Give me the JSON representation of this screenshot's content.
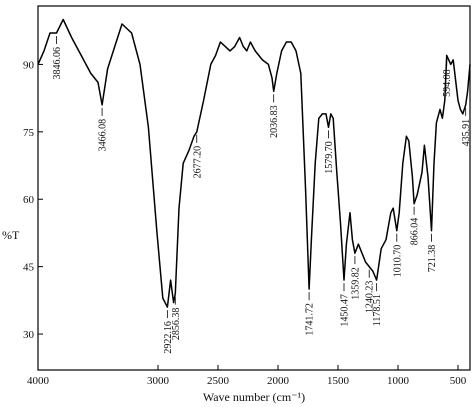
{
  "chart_data": {
    "type": "line",
    "xlabel": "Wave number (cm⁻¹)",
    "ylabel": "%T",
    "xlim": [
      4000,
      400
    ],
    "ylim": [
      22,
      103
    ],
    "x_reversed": true,
    "grid": false,
    "x_ticks": [
      {
        "value": 4000,
        "label": "4000"
      },
      {
        "value": 3000,
        "label": "3000"
      },
      {
        "value": 2500,
        "label": "2500"
      },
      {
        "value": 2000,
        "label": "2000"
      },
      {
        "value": 1500,
        "label": "1500"
      },
      {
        "value": 1000,
        "label": "1000"
      },
      {
        "value": 500,
        "label": "500"
      }
    ],
    "y_ticks": [
      {
        "value": 90,
        "label": "90"
      },
      {
        "value": 75,
        "label": "75"
      },
      {
        "value": 60,
        "label": "60"
      },
      {
        "value": 45,
        "label": "45"
      },
      {
        "value": 30,
        "label": "30"
      }
    ],
    "series": [
      {
        "x": [
          4000,
          3950,
          3900,
          3846,
          3790,
          3720,
          3640,
          3560,
          3500,
          3466,
          3420,
          3360,
          3300,
          3260,
          3220,
          3150,
          3080,
          3010,
          2960,
          2922,
          2895,
          2870,
          2856,
          2825,
          2790,
          2740,
          2700,
          2677,
          2620,
          2560,
          2520,
          2480,
          2440,
          2400,
          2360,
          2320,
          2290,
          2260,
          2230,
          2190,
          2130,
          2080,
          2050,
          2036,
          2010,
          1970,
          1930,
          1890,
          1850,
          1810,
          1770,
          1741,
          1720,
          1690,
          1660,
          1630,
          1600,
          1579,
          1560,
          1540,
          1510,
          1480,
          1450,
          1430,
          1400,
          1380,
          1359,
          1330,
          1300,
          1270,
          1240,
          1210,
          1178,
          1140,
          1100,
          1060,
          1040,
          1010,
          990,
          960,
          930,
          910,
          880,
          866,
          840,
          800,
          780,
          750,
          721,
          700,
          680,
          650,
          630,
          610,
          594,
          560,
          540,
          500,
          480,
          460,
          436,
          420,
          400
        ],
        "y": [
          90,
          93,
          97,
          97,
          100,
          96,
          92,
          88,
          86,
          81,
          89,
          94,
          99,
          98,
          97,
          90,
          76,
          53,
          38,
          36,
          42,
          37,
          39,
          58,
          68,
          71,
          74,
          75,
          82,
          90,
          92,
          95,
          94,
          93,
          94,
          96,
          94,
          93,
          95,
          93,
          91,
          90,
          87,
          84,
          88,
          93,
          95,
          95,
          93,
          88,
          62,
          40,
          52,
          68,
          78,
          79,
          79,
          76,
          79,
          78,
          66,
          55,
          42,
          50,
          57,
          51,
          48,
          50,
          48,
          46,
          45,
          44,
          42,
          49,
          51,
          57,
          58,
          53,
          57,
          68,
          74,
          73,
          65,
          59,
          61,
          66,
          72,
          65,
          53,
          68,
          77,
          80,
          78,
          82,
          92,
          90,
          91,
          82,
          80,
          79,
          81,
          84,
          90
        ]
      }
    ],
    "annotations": [
      {
        "x": 3846,
        "label": "3846.06"
      },
      {
        "x": 3466,
        "label": "3466.08"
      },
      {
        "x": 2922,
        "label": "2922.16"
      },
      {
        "x": 2856,
        "label": "2856.38"
      },
      {
        "x": 2677,
        "label": "2677.20"
      },
      {
        "x": 2036,
        "label": "2036.83"
      },
      {
        "x": 1741,
        "label": "1741.72"
      },
      {
        "x": 1579,
        "label": "1579.70"
      },
      {
        "x": 1450,
        "label": "1450.47"
      },
      {
        "x": 1359,
        "label": "1359.82"
      },
      {
        "x": 1240,
        "label": "1240.23"
      },
      {
        "x": 1178,
        "label": "1178.51"
      },
      {
        "x": 1010,
        "label": "1010.70"
      },
      {
        "x": 866,
        "label": "866.04"
      },
      {
        "x": 721,
        "label": "721.38"
      },
      {
        "x": 594,
        "label": "594.08"
      },
      {
        "x": 436,
        "label": "435.91"
      }
    ]
  }
}
